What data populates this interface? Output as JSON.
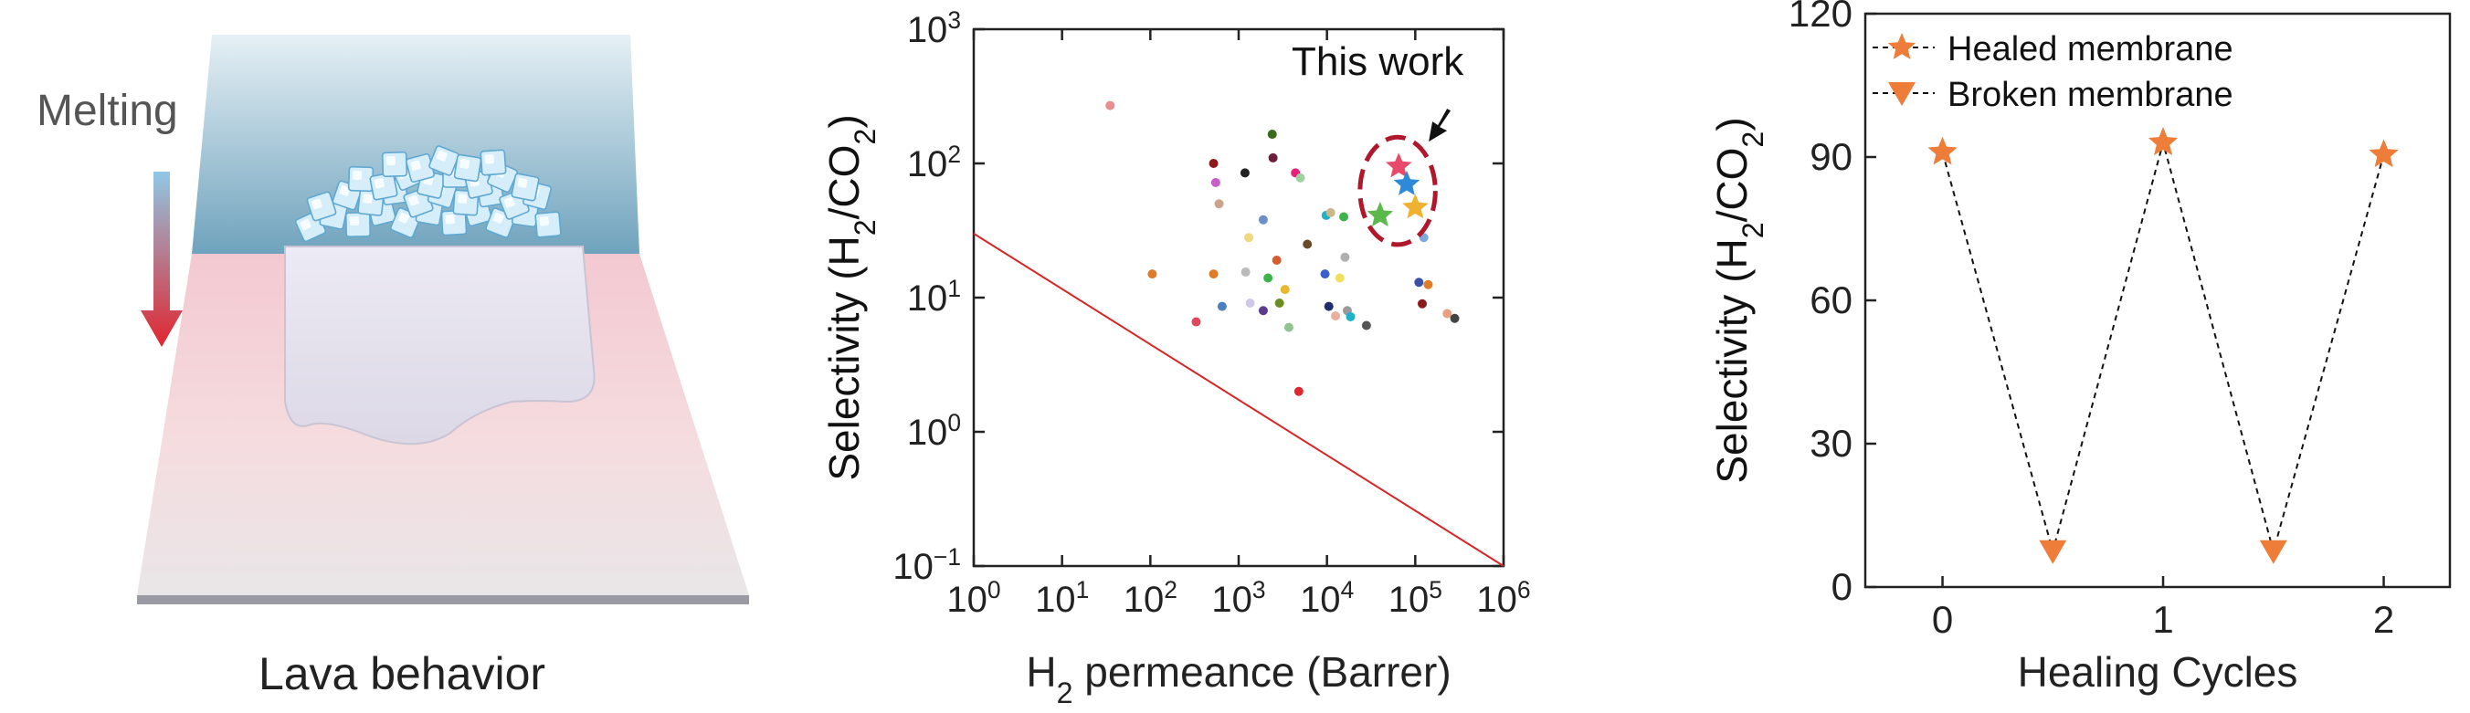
{
  "illustration": {
    "melting_label": "Melting",
    "caption": "Lava behavior",
    "colors": {
      "top_blue": "#7fb1c8",
      "pink": "#f2c6cf",
      "arrow_top": "#8fc8e6",
      "arrow_bottom": "#e0262f"
    }
  },
  "chart_data": [
    {
      "type": "scatter",
      "title": "",
      "xlabel": "H2 permeance (Barrer)",
      "ylabel": "Selectivity (H2/CO2)",
      "xscale": "log",
      "yscale": "log",
      "xlim": [
        1,
        1000000
      ],
      "ylim": [
        0.1,
        1000
      ],
      "x_ticks": [
        1,
        10,
        100,
        1000,
        10000,
        100000,
        1000000
      ],
      "y_ticks": [
        0.1,
        1,
        10,
        100,
        1000
      ],
      "x_tick_labels": [
        {
          "base": "10",
          "exp": "0"
        },
        {
          "base": "10",
          "exp": "1"
        },
        {
          "base": "10",
          "exp": "2"
        },
        {
          "base": "10",
          "exp": "3"
        },
        {
          "base": "10",
          "exp": "4"
        },
        {
          "base": "10",
          "exp": "5"
        },
        {
          "base": "10",
          "exp": "6"
        }
      ],
      "y_tick_labels": [
        {
          "base": "10",
          "exp": "−1"
        },
        {
          "base": "10",
          "exp": "0"
        },
        {
          "base": "10",
          "exp": "1"
        },
        {
          "base": "10",
          "exp": "2"
        },
        {
          "base": "10",
          "exp": "3"
        }
      ],
      "upper_bound_line": {
        "color": "#d62728",
        "points": [
          [
            1,
            30
          ],
          [
            1000000,
            0.1
          ]
        ]
      },
      "annotation": {
        "text": "This work",
        "ellipse_color": "#b0172b"
      },
      "series": [
        {
          "marker": "dot",
          "points": [
            {
              "x": 35,
              "y": 270,
              "color": "#e88e8e"
            },
            {
              "x": 105,
              "y": 15,
              "color": "#e07b28"
            },
            {
              "x": 330,
              "y": 6.6,
              "color": "#e0485a"
            },
            {
              "x": 520,
              "y": 100,
              "color": "#8b1a1a"
            },
            {
              "x": 550,
              "y": 72,
              "color": "#c85fc8"
            },
            {
              "x": 520,
              "y": 15,
              "color": "#e07b28"
            },
            {
              "x": 600,
              "y": 50,
              "color": "#c9a38a"
            },
            {
              "x": 650,
              "y": 8.6,
              "color": "#4a7fc1"
            },
            {
              "x": 1180,
              "y": 85,
              "color": "#222222"
            },
            {
              "x": 1300,
              "y": 28,
              "color": "#f0d880"
            },
            {
              "x": 1200,
              "y": 15.5,
              "color": "#bbbbbb"
            },
            {
              "x": 1350,
              "y": 9.1,
              "color": "#d0c8e8"
            },
            {
              "x": 1900,
              "y": 38,
              "color": "#6a8fc9"
            },
            {
              "x": 2150,
              "y": 14,
              "color": "#3cb44b"
            },
            {
              "x": 1900,
              "y": 8,
              "color": "#5e3a8c"
            },
            {
              "x": 2400,
              "y": 165,
              "color": "#3a6b1f"
            },
            {
              "x": 2450,
              "y": 110,
              "color": "#6b1f3a"
            },
            {
              "x": 2700,
              "y": 19,
              "color": "#d65c2d"
            },
            {
              "x": 2900,
              "y": 9.1,
              "color": "#6b8e23"
            },
            {
              "x": 3350,
              "y": 11.5,
              "color": "#e8b830"
            },
            {
              "x": 3700,
              "y": 6,
              "color": "#90c590"
            },
            {
              "x": 4400,
              "y": 85,
              "color": "#e8207a"
            },
            {
              "x": 5000,
              "y": 78,
              "color": "#9fd0a0"
            },
            {
              "x": 4800,
              "y": 2,
              "color": "#e0262f"
            },
            {
              "x": 6000,
              "y": 25,
              "color": "#6b4a2a"
            },
            {
              "x": 9800,
              "y": 41,
              "color": "#20b0c8"
            },
            {
              "x": 11000,
              "y": 43,
              "color": "#c8b88a"
            },
            {
              "x": 9500,
              "y": 15,
              "color": "#3a5fc8"
            },
            {
              "x": 10500,
              "y": 8.6,
              "color": "#1f2f6b"
            },
            {
              "x": 12500,
              "y": 7.3,
              "color": "#e8b0a0"
            },
            {
              "x": 14000,
              "y": 14,
              "color": "#f0e060"
            },
            {
              "x": 15500,
              "y": 40,
              "color": "#3cb44b"
            },
            {
              "x": 16000,
              "y": 20,
              "color": "#b0b0b0"
            },
            {
              "x": 17000,
              "y": 8,
              "color": "#9a9a9a"
            },
            {
              "x": 18500,
              "y": 7.2,
              "color": "#20b0c8"
            },
            {
              "x": 28000,
              "y": 6.2,
              "color": "#555555"
            },
            {
              "x": 110000,
              "y": 13,
              "color": "#3a4fa8"
            },
            {
              "x": 120000,
              "y": 9,
              "color": "#8b1a1a"
            },
            {
              "x": 125000,
              "y": 28,
              "color": "#7fa8e0"
            },
            {
              "x": 140000,
              "y": 12.5,
              "color": "#e07b28"
            },
            {
              "x": 230000,
              "y": 7.6,
              "color": "#e8a080"
            },
            {
              "x": 280000,
              "y": 7,
              "color": "#444444"
            }
          ]
        },
        {
          "name": "This work",
          "marker": "star",
          "points": [
            {
              "x": 65000,
              "y": 95,
              "color": "#e84a6a"
            },
            {
              "x": 80000,
              "y": 70,
              "color": "#2e8ad8"
            },
            {
              "x": 40000,
              "y": 41,
              "color": "#5bb84a"
            },
            {
              "x": 100000,
              "y": 47,
              "color": "#f0b030"
            }
          ]
        }
      ]
    },
    {
      "type": "line",
      "title": "",
      "xlabel": "Healing Cycles",
      "ylabel": "Selectivity (H2/CO2)",
      "xlim": [
        -0.35,
        2.3
      ],
      "ylim": [
        0,
        120
      ],
      "x_ticks": [
        0,
        1,
        2
      ],
      "x_tick_labels": [
        "0",
        "1",
        "2"
      ],
      "y_ticks": [
        0,
        30,
        60,
        90,
        120
      ],
      "y_tick_labels": [
        "0",
        "30",
        "60",
        "90",
        "120"
      ],
      "line_style": "dashed",
      "marker_color": "#ef7d3a",
      "series": [
        {
          "name": "Healed membrane",
          "marker": "star",
          "x": [
            0,
            1,
            2
          ],
          "values": [
            91,
            93,
            90.5
          ]
        },
        {
          "name": "Broken membrane",
          "marker": "triangle-down",
          "x": [
            0.5,
            1.5
          ],
          "values": [
            7.5,
            7.5
          ]
        }
      ],
      "legend": "top-left"
    }
  ]
}
